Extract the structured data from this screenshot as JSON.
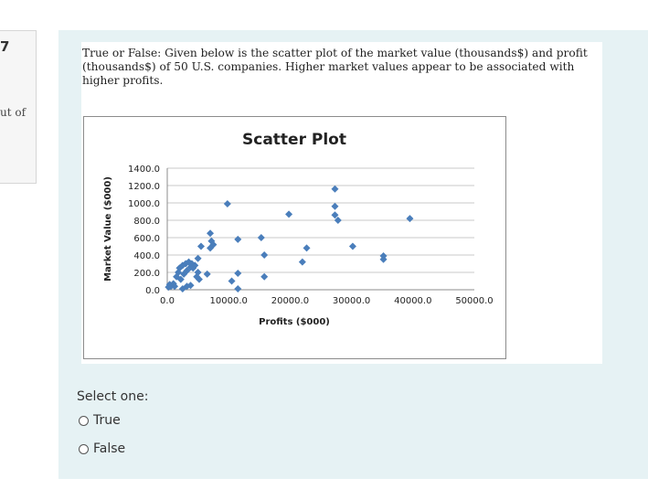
{
  "question": {
    "number": "7",
    "marks_fragment": "ut of",
    "text": "True or False: Given below is the scatter plot of the market value (thousands$) and profit (thousands$) of 50 U.S. companies. Higher market values appear to be associated with higher profits.",
    "select_label": "Select one:",
    "options": [
      {
        "label": "True"
      },
      {
        "label": "False"
      }
    ]
  },
  "colors": {
    "marker": "#4a7ebb",
    "grid": "#c8c8c8",
    "panel": "#e6f2f4"
  },
  "chart_data": {
    "type": "scatter",
    "title": "Scatter Plot",
    "xlabel": "Profits ($000)",
    "ylabel": "Market Value ($000)",
    "xlim": [
      0,
      50000
    ],
    "ylim": [
      0,
      1400
    ],
    "x_ticks": [
      "0.0",
      "10000.0",
      "20000.0",
      "30000.0",
      "40000.0",
      "50000.0"
    ],
    "y_ticks": [
      "0.0",
      "200.0",
      "400.0",
      "600.0",
      "800.0",
      "1000.0",
      "1200.0",
      "1400.0"
    ],
    "grid": true,
    "legend": "none",
    "points": [
      {
        "x": 200,
        "y": 30
      },
      {
        "x": 400,
        "y": 60
      },
      {
        "x": 600,
        "y": 40
      },
      {
        "x": 1000,
        "y": 70
      },
      {
        "x": 1500,
        "y": 150
      },
      {
        "x": 1800,
        "y": 200
      },
      {
        "x": 2000,
        "y": 250
      },
      {
        "x": 2200,
        "y": 120
      },
      {
        "x": 2500,
        "y": 280
      },
      {
        "x": 2700,
        "y": 180
      },
      {
        "x": 3000,
        "y": 300
      },
      {
        "x": 3200,
        "y": 220
      },
      {
        "x": 3500,
        "y": 320
      },
      {
        "x": 3800,
        "y": 260
      },
      {
        "x": 4000,
        "y": 300
      },
      {
        "x": 4200,
        "y": 250
      },
      {
        "x": 4500,
        "y": 280
      },
      {
        "x": 2500,
        "y": 10
      },
      {
        "x": 3200,
        "y": 40
      },
      {
        "x": 3800,
        "y": 50
      },
      {
        "x": 5000,
        "y": 200
      },
      {
        "x": 5200,
        "y": 120
      },
      {
        "x": 5000,
        "y": 360
      },
      {
        "x": 5500,
        "y": 500
      },
      {
        "x": 6500,
        "y": 180
      },
      {
        "x": 7000,
        "y": 480
      },
      {
        "x": 7200,
        "y": 560
      },
      {
        "x": 7000,
        "y": 650
      },
      {
        "x": 7500,
        "y": 520
      },
      {
        "x": 9800,
        "y": 990
      },
      {
        "x": 10500,
        "y": 100
      },
      {
        "x": 11500,
        "y": 190
      },
      {
        "x": 11500,
        "y": 580
      },
      {
        "x": 11500,
        "y": 10
      },
      {
        "x": 15300,
        "y": 600
      },
      {
        "x": 15800,
        "y": 400
      },
      {
        "x": 15800,
        "y": 150
      },
      {
        "x": 19800,
        "y": 870
      },
      {
        "x": 22000,
        "y": 320
      },
      {
        "x": 22700,
        "y": 480
      },
      {
        "x": 27300,
        "y": 1160
      },
      {
        "x": 27300,
        "y": 960
      },
      {
        "x": 27300,
        "y": 860
      },
      {
        "x": 27800,
        "y": 800
      },
      {
        "x": 30200,
        "y": 500
      },
      {
        "x": 35200,
        "y": 390
      },
      {
        "x": 35200,
        "y": 350
      },
      {
        "x": 39500,
        "y": 820
      },
      {
        "x": 1200,
        "y": 40
      },
      {
        "x": 4800,
        "y": 150
      }
    ]
  }
}
